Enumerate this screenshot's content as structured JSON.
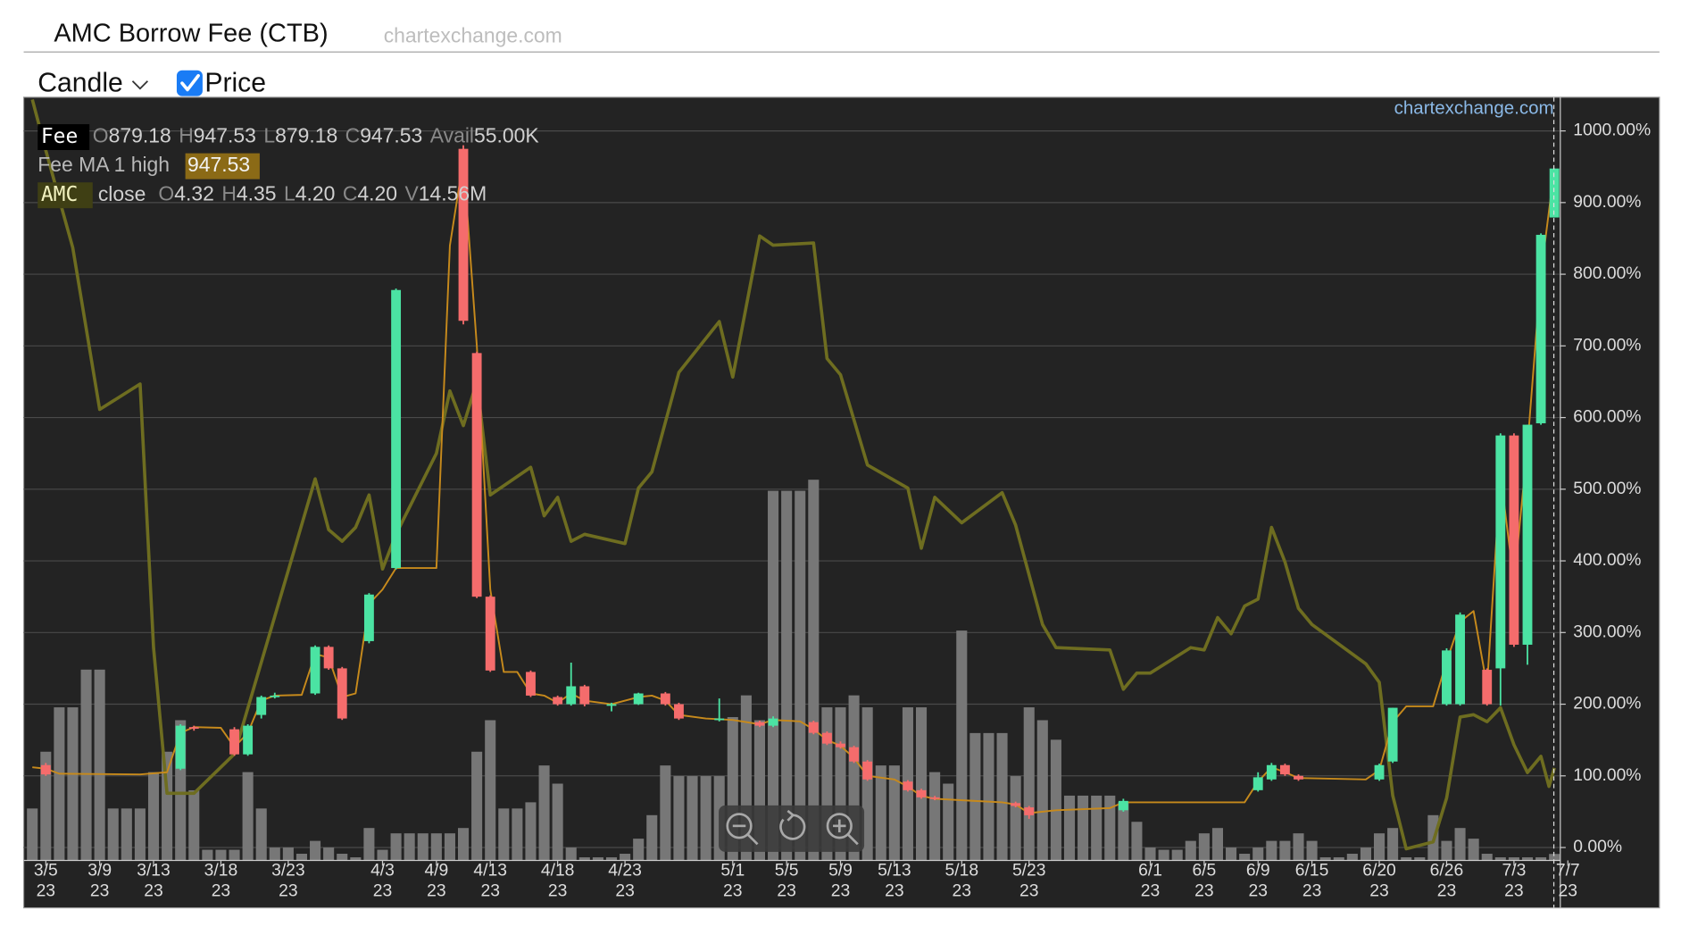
{
  "header": {
    "title": "AMC Borrow Fee (CTB)",
    "source": "chartexchange.com",
    "chart_style": "Candle",
    "price_toggle": "Price",
    "price_checked": true
  },
  "chart_data": {
    "type": "candlestick",
    "watermark": "chartexchange.com",
    "grid": true,
    "xlim": [
      -0.64,
      113.44
    ],
    "ylim": [
      -18,
      1047
    ],
    "yticks": [
      {
        "value": 0,
        "label": "0.00%"
      },
      {
        "value": 100,
        "label": "100.00%"
      },
      {
        "value": 200,
        "label": "200.00%"
      },
      {
        "value": 300,
        "label": "300.00%"
      },
      {
        "value": 400,
        "label": "400.00%"
      },
      {
        "value": 500,
        "label": "500.00%"
      },
      {
        "value": 600,
        "label": "600.00%"
      },
      {
        "value": 700,
        "label": "700.00%"
      },
      {
        "value": 800,
        "label": "800.00%"
      },
      {
        "value": 900,
        "label": "900.00%"
      },
      {
        "value": 1000,
        "label": "1000.00%"
      }
    ],
    "xticks": [
      {
        "value": 1,
        "label": "3/5\n23"
      },
      {
        "value": 5,
        "label": "3/9\n23"
      },
      {
        "value": 9,
        "label": "3/13\n23"
      },
      {
        "value": 14,
        "label": "3/18\n23"
      },
      {
        "value": 19,
        "label": "3/23\n23"
      },
      {
        "value": 26,
        "label": "4/3\n23"
      },
      {
        "value": 30,
        "label": "4/9\n23"
      },
      {
        "value": 34,
        "label": "4/13\n23"
      },
      {
        "value": 39,
        "label": "4/18\n23"
      },
      {
        "value": 44,
        "label": "4/23\n23"
      },
      {
        "value": 52,
        "label": "5/1\n23"
      },
      {
        "value": 56,
        "label": "5/5\n23"
      },
      {
        "value": 60,
        "label": "5/9\n23"
      },
      {
        "value": 64,
        "label": "5/13\n23"
      },
      {
        "value": 69,
        "label": "5/18\n23"
      },
      {
        "value": 74,
        "label": "5/23\n23"
      },
      {
        "value": 83,
        "label": "6/1\n23"
      },
      {
        "value": 87,
        "label": "6/5\n23"
      },
      {
        "value": 91,
        "label": "6/9\n23"
      },
      {
        "value": 95,
        "label": "6/15\n23"
      },
      {
        "value": 100,
        "label": "6/20\n23"
      },
      {
        "value": 105,
        "label": "6/26\n23"
      },
      {
        "value": 110,
        "label": "7/3\n23"
      },
      {
        "value": 114,
        "label": "7/7\n23"
      }
    ],
    "candles": {
      "name": "Fee",
      "up_color": "#4be3a3",
      "down_color": "#f56c6c",
      "x": [
        1,
        11,
        12,
        15,
        16,
        17,
        18,
        21,
        22,
        23,
        25,
        27,
        32,
        33,
        34,
        37,
        39,
        40,
        41,
        43,
        45,
        47,
        48,
        51,
        54,
        55,
        58,
        59,
        60,
        61,
        62,
        65,
        66,
        67,
        73,
        74,
        81,
        91,
        92,
        93,
        94,
        100,
        101,
        105,
        106,
        108,
        109,
        110,
        111,
        112,
        113
      ],
      "open": [
        115,
        110,
        168,
        165,
        130,
        185,
        212,
        215,
        280,
        250,
        288,
        390,
        975,
        690,
        350,
        245,
        210,
        200,
        225,
        200,
        200,
        215,
        200,
        178,
        175,
        170,
        175,
        160,
        145,
        140,
        120,
        92,
        80,
        70,
        62,
        56,
        52,
        80,
        95,
        115,
        100,
        95,
        120,
        200,
        200,
        248,
        250,
        575,
        283,
        592,
        879.18
      ],
      "high": [
        118,
        172,
        170,
        168,
        172,
        212,
        216,
        282,
        282,
        252,
        355,
        780,
        980,
        692,
        352,
        247,
        212,
        258,
        227,
        202,
        216,
        217,
        202,
        208,
        177,
        183,
        177,
        162,
        148,
        142,
        122,
        94,
        82,
        72,
        64,
        58,
        68,
        105,
        118,
        117,
        102,
        117,
        195,
        278,
        328,
        250,
        578,
        578,
        590,
        857,
        947.53
      ],
      "low": [
        100,
        108,
        163,
        128,
        128,
        180,
        208,
        213,
        248,
        178,
        285,
        388,
        730,
        348,
        245,
        210,
        198,
        198,
        197,
        190,
        199,
        198,
        178,
        176,
        168,
        168,
        158,
        143,
        138,
        118,
        93,
        78,
        68,
        66,
        56,
        40,
        50,
        78,
        93,
        100,
        93,
        93,
        118,
        198,
        198,
        198,
        198,
        280,
        255,
        590,
        879.18
      ],
      "close": [
        102,
        170,
        166,
        130,
        170,
        210,
        212,
        280,
        250,
        180,
        353,
        778,
        735,
        350,
        247,
        212,
        200,
        225,
        200,
        200,
        215,
        200,
        180,
        180,
        170,
        180,
        160,
        145,
        140,
        120,
        95,
        80,
        70,
        68,
        58,
        45,
        65,
        98,
        115,
        102,
        95,
        115,
        195,
        275,
        325,
        200,
        575,
        283,
        590,
        855,
        947.53
      ]
    },
    "ma": {
      "name": "Fee MA 1 high",
      "color": "#c78a1c",
      "x": [
        0,
        1,
        2,
        8,
        10,
        11,
        12,
        14,
        15,
        16,
        17,
        18,
        20,
        21,
        22,
        23,
        24,
        25,
        26,
        27,
        29,
        30,
        31,
        32,
        33,
        34,
        35,
        36,
        37,
        38,
        39,
        40,
        41,
        43,
        45,
        46,
        47,
        48,
        50,
        52,
        54,
        55,
        57,
        58,
        59,
        60,
        61,
        62,
        64,
        65,
        66,
        67,
        70,
        72,
        73,
        74,
        76,
        80,
        81,
        90,
        91,
        92,
        93,
        94,
        99,
        100,
        101,
        102,
        104,
        105,
        106,
        107,
        108,
        109,
        110,
        111,
        112,
        113
      ],
      "values": [
        112,
        110,
        103,
        102,
        105,
        160,
        168,
        167,
        140,
        160,
        205,
        212,
        213,
        270,
        265,
        210,
        215,
        340,
        360,
        390,
        390,
        390,
        840,
        960,
        700,
        360,
        245,
        245,
        215,
        212,
        202,
        215,
        205,
        200,
        210,
        212,
        205,
        185,
        180,
        178,
        172,
        178,
        176,
        165,
        150,
        142,
        125,
        100,
        95,
        85,
        72,
        68,
        65,
        63,
        60,
        48,
        52,
        55,
        63,
        63,
        92,
        112,
        105,
        97,
        95,
        108,
        175,
        197,
        197,
        260,
        315,
        330,
        225,
        520,
        370,
        560,
        800,
        947.53
      ]
    },
    "price": {
      "name": "AMC",
      "kind": "close",
      "color": "#6e6d20",
      "lim": [
        3.8,
        7.1
      ],
      "x": [
        0,
        1,
        3,
        5,
        8,
        9,
        10,
        12,
        15,
        21,
        22,
        23,
        24,
        25,
        26,
        27,
        30,
        31,
        32,
        33,
        34,
        37,
        38,
        39,
        40,
        41,
        44,
        45,
        46,
        48,
        51,
        52,
        54,
        55,
        58,
        59,
        60,
        62,
        65,
        66,
        67,
        69,
        72,
        73,
        75,
        76,
        80,
        81,
        82,
        83,
        86,
        87,
        88,
        89,
        90,
        91,
        92,
        93,
        94,
        95,
        99,
        100,
        101,
        102,
        104,
        105,
        106,
        107,
        108,
        109,
        110,
        111,
        112,
        112.6,
        113
      ],
      "values": [
        7.09,
        6.87,
        6.45,
        5.75,
        5.86,
        4.72,
        4.09,
        4.09,
        4.26,
        5.45,
        5.23,
        5.18,
        5.24,
        5.38,
        5.06,
        5.21,
        5.56,
        5.83,
        5.68,
        5.87,
        5.38,
        5.5,
        5.29,
        5.37,
        5.18,
        5.21,
        5.17,
        5.41,
        5.48,
        5.91,
        6.13,
        5.89,
        6.5,
        6.46,
        6.47,
        5.97,
        5.9,
        5.51,
        5.41,
        5.15,
        5.37,
        5.26,
        5.39,
        5.25,
        4.82,
        4.72,
        4.71,
        4.54,
        4.61,
        4.61,
        4.72,
        4.71,
        4.85,
        4.78,
        4.9,
        4.93,
        5.24,
        5.09,
        4.89,
        4.82,
        4.65,
        4.57,
        4.08,
        3.85,
        3.88,
        4.07,
        4.42,
        4.43,
        4.4,
        4.46,
        4.3,
        4.18,
        4.25,
        4.12,
        4.2
      ]
    },
    "volume": {
      "color": "#777777",
      "lim": [
        0,
        1720
      ],
      "x": [
        0,
        1,
        2,
        3,
        4,
        5,
        6,
        7,
        8,
        9,
        10,
        11,
        12,
        13,
        14,
        15,
        16,
        17,
        18,
        19,
        20,
        21,
        22,
        23,
        24,
        25,
        26,
        27,
        28,
        29,
        30,
        31,
        32,
        33,
        34,
        35,
        36,
        37,
        38,
        39,
        40,
        41,
        42,
        43,
        44,
        45,
        46,
        47,
        48,
        49,
        50,
        51,
        52,
        53,
        54,
        55,
        56,
        57,
        58,
        59,
        60,
        61,
        62,
        63,
        64,
        65,
        66,
        67,
        68,
        69,
        70,
        71,
        72,
        73,
        74,
        75,
        76,
        77,
        78,
        79,
        80,
        81,
        82,
        83,
        84,
        85,
        86,
        87,
        88,
        89,
        90,
        91,
        92,
        93,
        94,
        95,
        96,
        97,
        98,
        99,
        100,
        101,
        102,
        103,
        104,
        105,
        106,
        107,
        108,
        109,
        110,
        111,
        112,
        113
      ],
      "values": [
        117,
        245,
        345,
        345,
        430,
        430,
        117,
        117,
        117,
        199,
        245,
        316,
        158,
        24,
        24,
        24,
        199,
        117,
        29,
        29,
        15,
        44,
        29,
        15,
        7,
        73,
        24,
        61,
        61,
        61,
        61,
        61,
        73,
        245,
        316,
        117,
        117,
        131,
        214,
        173,
        29,
        7,
        7,
        7,
        15,
        49,
        102,
        214,
        190,
        190,
        190,
        190,
        323,
        372,
        316,
        833,
        833,
        833,
        858,
        345,
        345,
        372,
        345,
        214,
        214,
        345,
        345,
        199,
        173,
        518,
        287,
        287,
        287,
        190,
        345,
        316,
        272,
        146,
        146,
        146,
        146,
        131,
        87,
        29,
        24,
        24,
        44,
        61,
        73,
        29,
        15,
        29,
        44,
        44,
        61,
        44,
        7,
        7,
        15,
        29,
        61,
        73,
        7,
        7,
        102,
        44,
        73,
        49,
        15,
        7,
        7,
        7,
        7,
        14.56
      ]
    },
    "legend": {
      "fee": [
        {
          "key": "O",
          "value": "879.18"
        },
        {
          "key": "H",
          "value": "947.53"
        },
        {
          "key": "L",
          "value": "879.18"
        },
        {
          "key": "C",
          "value": "947.53"
        },
        {
          "key": "Avail",
          "value": "55.00K"
        }
      ],
      "ma_value": "947.53",
      "price": [
        {
          "key": "O",
          "value": "4.32"
        },
        {
          "key": "H",
          "value": "4.35"
        },
        {
          "key": "L",
          "value": "4.20"
        },
        {
          "key": "C",
          "value": "4.20"
        },
        {
          "key": "V",
          "value": "14.56M"
        }
      ]
    }
  }
}
